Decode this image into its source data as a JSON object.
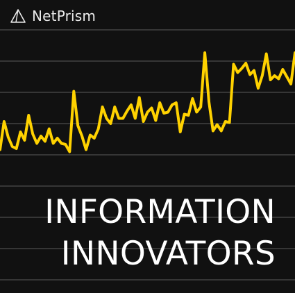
{
  "brand": {
    "name": "NetPrism",
    "logo_icon": "triangle-prism-icon"
  },
  "headline": {
    "line1": "INFORMATION",
    "line2": "INNOVATORS"
  },
  "colors": {
    "background": "#111111",
    "line": "#ffd200",
    "grid": "#5a5a5a",
    "text": "#ffffff"
  },
  "graphic": {
    "gridlines": 9,
    "trend": [
      35,
      62,
      47,
      38,
      36,
      52,
      44,
      68,
      50,
      41,
      48,
      43,
      55,
      41,
      46,
      41,
      40,
      33,
      91,
      58,
      48,
      35,
      49,
      46,
      55,
      76,
      65,
      60,
      76,
      65,
      65,
      72,
      78,
      65,
      85,
      62,
      71,
      75,
      63,
      80,
      70,
      71,
      78,
      80,
      52,
      69,
      68,
      84,
      71,
      76,
      128,
      81,
      53,
      59,
      53,
      62,
      61,
      117,
      109,
      113,
      118,
      107,
      111,
      94,
      106,
      127,
      102,
      106,
      103,
      112,
      105,
      98,
      128
    ]
  }
}
